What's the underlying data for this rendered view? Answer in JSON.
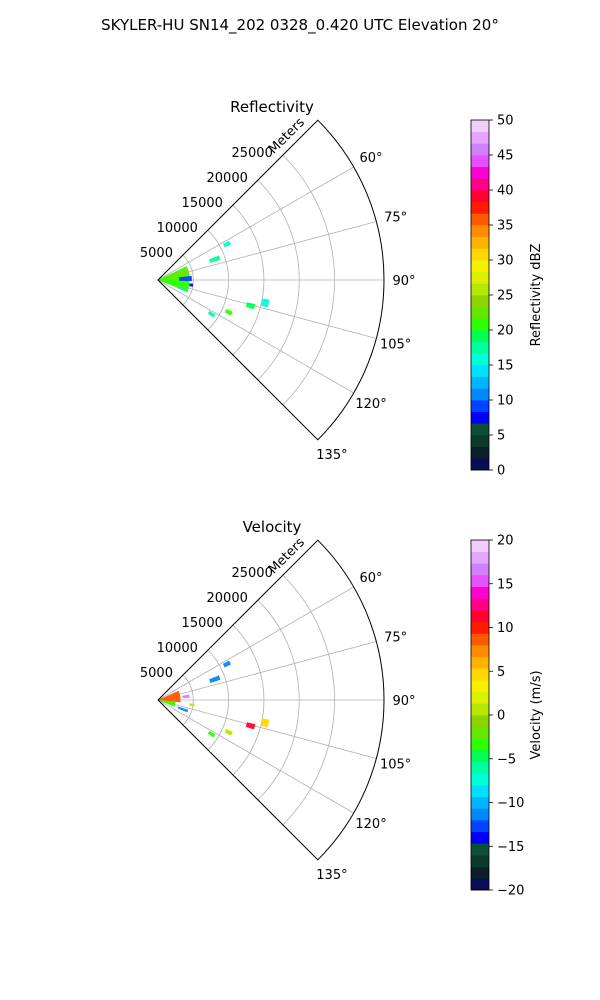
{
  "suptitle": "SKYLER-HU  SN14_202  0328_0.420 UTC Elevation 20°",
  "chart_data": [
    {
      "type": "heatmap",
      "subtype": "polar sector (radar PPI)",
      "title": "Reflectivity",
      "radial_label": "Meters",
      "radial_ticks": [
        5000,
        10000,
        15000,
        20000,
        25000
      ],
      "radial_tick_labels": [
        "5000",
        "10000",
        "15000",
        "20000",
        "25000"
      ],
      "rmax": 32000,
      "theta_range_deg": [
        45,
        135
      ],
      "theta_ticks_deg": [
        60,
        75,
        90,
        105,
        120,
        135
      ],
      "theta_tick_labels": [
        "60°",
        "75°",
        "90°",
        "105°",
        "120°",
        "135°"
      ],
      "grid": true,
      "colorbar": {
        "label": "Reflectivity dBZ",
        "vmin": 0,
        "vmax": 50,
        "ticks": [
          0,
          5,
          10,
          15,
          20,
          25,
          30,
          35,
          40,
          45,
          50
        ],
        "tick_labels": [
          "0",
          "5",
          "10",
          "15",
          "20",
          "25",
          "30",
          "35",
          "40",
          "45",
          "50"
        ],
        "colors": [
          "#0b0b5a",
          "#0a1f2a",
          "#0d3b2a",
          "#0c4f36",
          "#0000ff",
          "#0044ff",
          "#0088ff",
          "#00b5ff",
          "#00e1ff",
          "#00ffd8",
          "#00ffa0",
          "#00ff55",
          "#2eff00",
          "#63e600",
          "#8ed400",
          "#b6e800",
          "#dcef00",
          "#f4f000",
          "#ffd800",
          "#ffb300",
          "#ff8c00",
          "#ff5a00",
          "#ff1a00",
          "#ff0030",
          "#ff0088",
          "#ff00d0",
          "#e650ff",
          "#d080ff",
          "#e3a6ff",
          "#f1cdfb"
        ]
      },
      "returns": [
        {
          "range_m": [
            0,
            4500
          ],
          "azimuth_deg": [
            64,
            112
          ],
          "value": 20
        },
        {
          "range_m": [
            1500,
            4500
          ],
          "azimuth_deg": [
            70,
            78
          ],
          "value": 24
        },
        {
          "range_m": [
            3000,
            4800
          ],
          "azimuth_deg": [
            83,
            92
          ],
          "value": 9
        },
        {
          "range_m": [
            4500,
            5000
          ],
          "azimuth_deg": [
            96,
            101
          ],
          "value": 7
        },
        {
          "range_m": [
            3000,
            4500
          ],
          "azimuth_deg": [
            108,
            113
          ],
          "value": 18
        },
        {
          "range_m": [
            7800,
            9300
          ],
          "azimuth_deg": [
            68,
            72
          ],
          "value": 18
        },
        {
          "range_m": [
            10500,
            11500
          ],
          "azimuth_deg": [
            61,
            64
          ],
          "value": 16
        },
        {
          "range_m": [
            8500,
            9500
          ],
          "azimuth_deg": [
            121,
            124
          ],
          "value": 18
        },
        {
          "range_m": [
            13000,
            14200
          ],
          "azimuth_deg": [
            104,
            107
          ],
          "value": 19
        },
        {
          "range_m": [
            15000,
            16000
          ],
          "azimuth_deg": [
            100,
            104
          ],
          "value": 16
        },
        {
          "range_m": [
            10500,
            11500
          ],
          "azimuth_deg": [
            113,
            116
          ],
          "value": 20
        }
      ]
    },
    {
      "type": "heatmap",
      "subtype": "polar sector (radar PPI)",
      "title": "Velocity",
      "radial_label": "Meters",
      "radial_ticks": [
        5000,
        10000,
        15000,
        20000,
        25000
      ],
      "radial_tick_labels": [
        "5000",
        "10000",
        "15000",
        "20000",
        "25000"
      ],
      "rmax": 32000,
      "theta_range_deg": [
        45,
        135
      ],
      "theta_ticks_deg": [
        60,
        75,
        90,
        105,
        120,
        135
      ],
      "theta_tick_labels": [
        "60°",
        "75°",
        "90°",
        "105°",
        "120°",
        "135°"
      ],
      "grid": true,
      "colorbar": {
        "label": "Velocity (m/s)",
        "vmin": -20,
        "vmax": 20,
        "ticks": [
          -20,
          -15,
          -10,
          -5,
          0,
          5,
          10,
          15,
          20
        ],
        "tick_labels": [
          "−20",
          "−15",
          "−10",
          "−5",
          "0",
          "5",
          "10",
          "15",
          "20"
        ],
        "colors": [
          "#0b0b5a",
          "#0a1f2a",
          "#0d3b2a",
          "#0c4f36",
          "#0000ff",
          "#0044ff",
          "#0088ff",
          "#00b5ff",
          "#00e1ff",
          "#00ffd8",
          "#00ffa0",
          "#00ff55",
          "#2eff00",
          "#63e600",
          "#8ed400",
          "#b6e800",
          "#dcef00",
          "#f4f000",
          "#ffd800",
          "#ffb300",
          "#ff8c00",
          "#ff5a00",
          "#ff1a00",
          "#ff0030",
          "#ff0088",
          "#ff00d0",
          "#e650ff",
          "#d080ff",
          "#e3a6ff",
          "#f1cdfb"
        ]
      },
      "returns": [
        {
          "range_m": [
            0,
            3200
          ],
          "azimuth_deg": [
            66,
            96
          ],
          "value": 8
        },
        {
          "range_m": [
            0,
            2500
          ],
          "azimuth_deg": [
            96,
            112
          ],
          "value": -3
        },
        {
          "range_m": [
            3500,
            4500
          ],
          "azimuth_deg": [
            80,
            86
          ],
          "value": 16
        },
        {
          "range_m": [
            4500,
            5200
          ],
          "azimuth_deg": [
            96,
            100
          ],
          "value": 1
        },
        {
          "range_m": [
            3000,
            4500
          ],
          "azimuth_deg": [
            108,
            113
          ],
          "value": -11
        },
        {
          "range_m": [
            7800,
            9300
          ],
          "azimuth_deg": [
            68,
            72
          ],
          "value": -11
        },
        {
          "range_m": [
            10500,
            11500
          ],
          "azimuth_deg": [
            61,
            64
          ],
          "value": -11
        },
        {
          "range_m": [
            8500,
            9500
          ],
          "azimuth_deg": [
            121,
            124
          ],
          "value": -3
        },
        {
          "range_m": [
            13000,
            14200
          ],
          "azimuth_deg": [
            104,
            107
          ],
          "value": 11
        },
        {
          "range_m": [
            15000,
            16000
          ],
          "azimuth_deg": [
            100,
            104
          ],
          "value": 5
        },
        {
          "range_m": [
            10500,
            11500
          ],
          "azimuth_deg": [
            113,
            116
          ],
          "value": 1
        }
      ]
    }
  ]
}
